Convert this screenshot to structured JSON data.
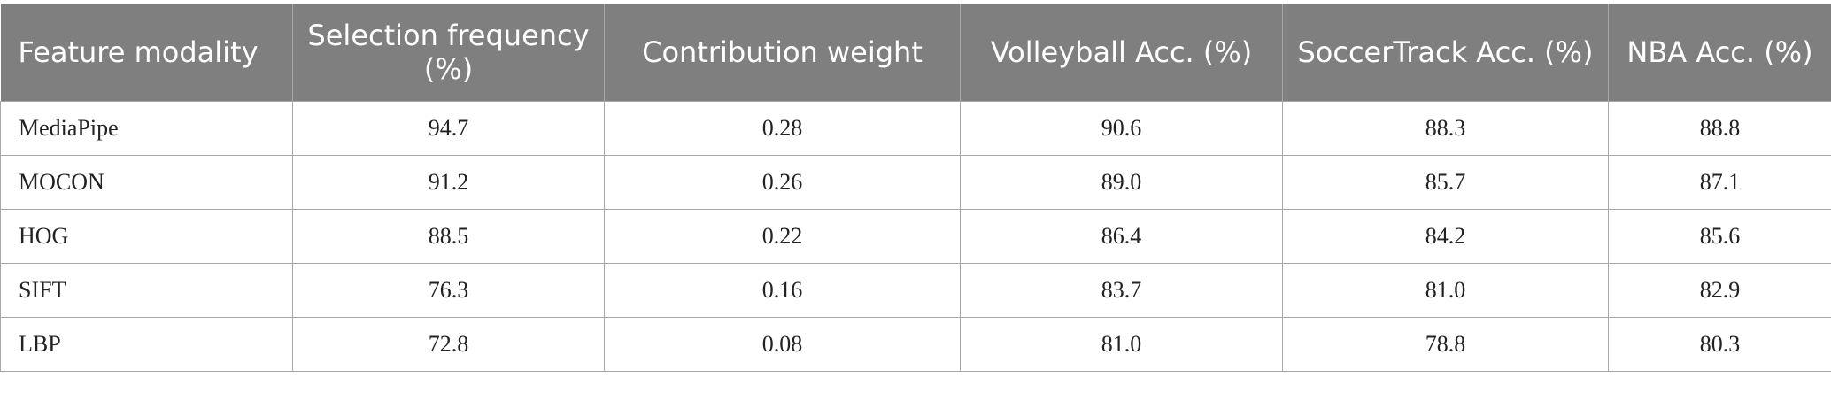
{
  "table": {
    "header": [
      "Feature modality",
      "Selection frequency (%)",
      "Contribution weight",
      "Volleyball Acc. (%)",
      "SoccerTrack Acc. (%)",
      "NBA Acc. (%)"
    ],
    "rows": [
      [
        "MediaPipe",
        "94.7",
        "0.28",
        "90.6",
        "88.3",
        "88.8"
      ],
      [
        "MOCON",
        "91.2",
        "0.26",
        "89.0",
        "85.7",
        "87.1"
      ],
      [
        "HOG",
        "88.5",
        "0.22",
        "86.4",
        "84.2",
        "85.6"
      ],
      [
        "SIFT",
        "76.3",
        "0.16",
        "83.7",
        "81.0",
        "82.9"
      ],
      [
        "LBP",
        "72.8",
        "0.08",
        "81.0",
        "78.8",
        "80.3"
      ]
    ]
  }
}
